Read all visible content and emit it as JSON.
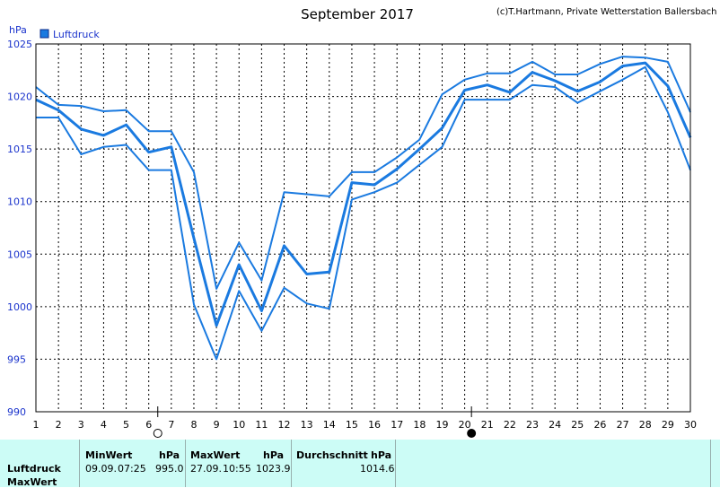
{
  "header": {
    "title": "September 2017",
    "credit": "(c)T.Hartmann, Private Wetterstation Ballersbach"
  },
  "chart_data": {
    "type": "line",
    "title": "September 2017",
    "ylabel": "hPa",
    "ylim": [
      990,
      1025
    ],
    "yticks": [
      "1025",
      "1020",
      "1015",
      "1010",
      "1005",
      "1000",
      "995",
      "990"
    ],
    "xlim": [
      1,
      30
    ],
    "x": [
      1,
      2,
      3,
      4,
      5,
      6,
      7,
      8,
      9,
      10,
      11,
      12,
      13,
      14,
      15,
      16,
      17,
      18,
      19,
      20,
      21,
      22,
      23,
      24,
      25,
      26,
      27,
      28,
      29,
      30
    ],
    "xticks": [
      "1",
      "2",
      "3",
      "4",
      "5",
      "6",
      "7",
      "8",
      "9",
      "10",
      "11",
      "12",
      "13",
      "14",
      "15",
      "16",
      "17",
      "18",
      "19",
      "20",
      "21",
      "22",
      "23",
      "24",
      "25",
      "26",
      "27",
      "28",
      "29",
      "30"
    ],
    "grid": true,
    "legend": "top-left",
    "legend_label": "Luftdruck",
    "color": "#1a7ae0",
    "series": [
      {
        "name": "Luftdruck",
        "role": "max",
        "values": [
          1020.9,
          1019.2,
          1019.1,
          1018.6,
          1018.7,
          1016.7,
          1016.7,
          1012.8,
          1001.7,
          1006.1,
          1002.5,
          1010.9,
          1010.7,
          1010.5,
          1012.8,
          1012.8,
          1014.2,
          1015.9,
          1020.2,
          1021.6,
          1022.2,
          1022.2,
          1023.3,
          1022.1,
          1022.1,
          1023.1,
          1023.8,
          1023.7,
          1023.3,
          1018.5
        ]
      },
      {
        "name": "Luftdruck",
        "role": "mean",
        "values": [
          1019.7,
          1018.7,
          1016.9,
          1016.3,
          1017.3,
          1014.7,
          1015.2,
          1006.5,
          998.2,
          1004.0,
          999.6,
          1005.8,
          1003.1,
          1003.3,
          1011.8,
          1011.6,
          1013.1,
          1015.0,
          1017.0,
          1020.6,
          1021.1,
          1020.4,
          1022.3,
          1021.5,
          1020.5,
          1021.4,
          1022.9,
          1023.2,
          1021.0,
          1016.1
        ]
      },
      {
        "name": "Luftdruck",
        "role": "min",
        "values": [
          1018.0,
          1018.0,
          1014.5,
          1015.2,
          1015.4,
          1013.0,
          1013.0,
          1000.2,
          995.0,
          1001.5,
          997.7,
          1001.8,
          1000.3,
          999.8,
          1010.2,
          1010.9,
          1011.8,
          1013.5,
          1015.2,
          1019.7,
          1019.7,
          1019.7,
          1021.1,
          1020.9,
          1019.4,
          1020.5,
          1021.6,
          1022.8,
          1018.5,
          1013.0
        ]
      }
    ],
    "moon_phases": [
      {
        "day": 6.4,
        "phase": "full-moon"
      },
      {
        "day": 20.3,
        "phase": "new-moon"
      }
    ]
  },
  "stats": {
    "row_label_1": "Luftdruck",
    "row_label_2": "MaxWert",
    "min_header": "MinWert",
    "min_unit": "hPa",
    "min_date": "09.09.",
    "min_time": "07:25",
    "min_value": "995.0",
    "max_header": "MaxWert",
    "max_unit": "hPa",
    "max_date": "27.09.",
    "max_time": "10:55",
    "max_value": "1023.9",
    "avg_header": "Durchschnitt",
    "avg_unit": "hPa",
    "avg_value": "1014.6"
  }
}
